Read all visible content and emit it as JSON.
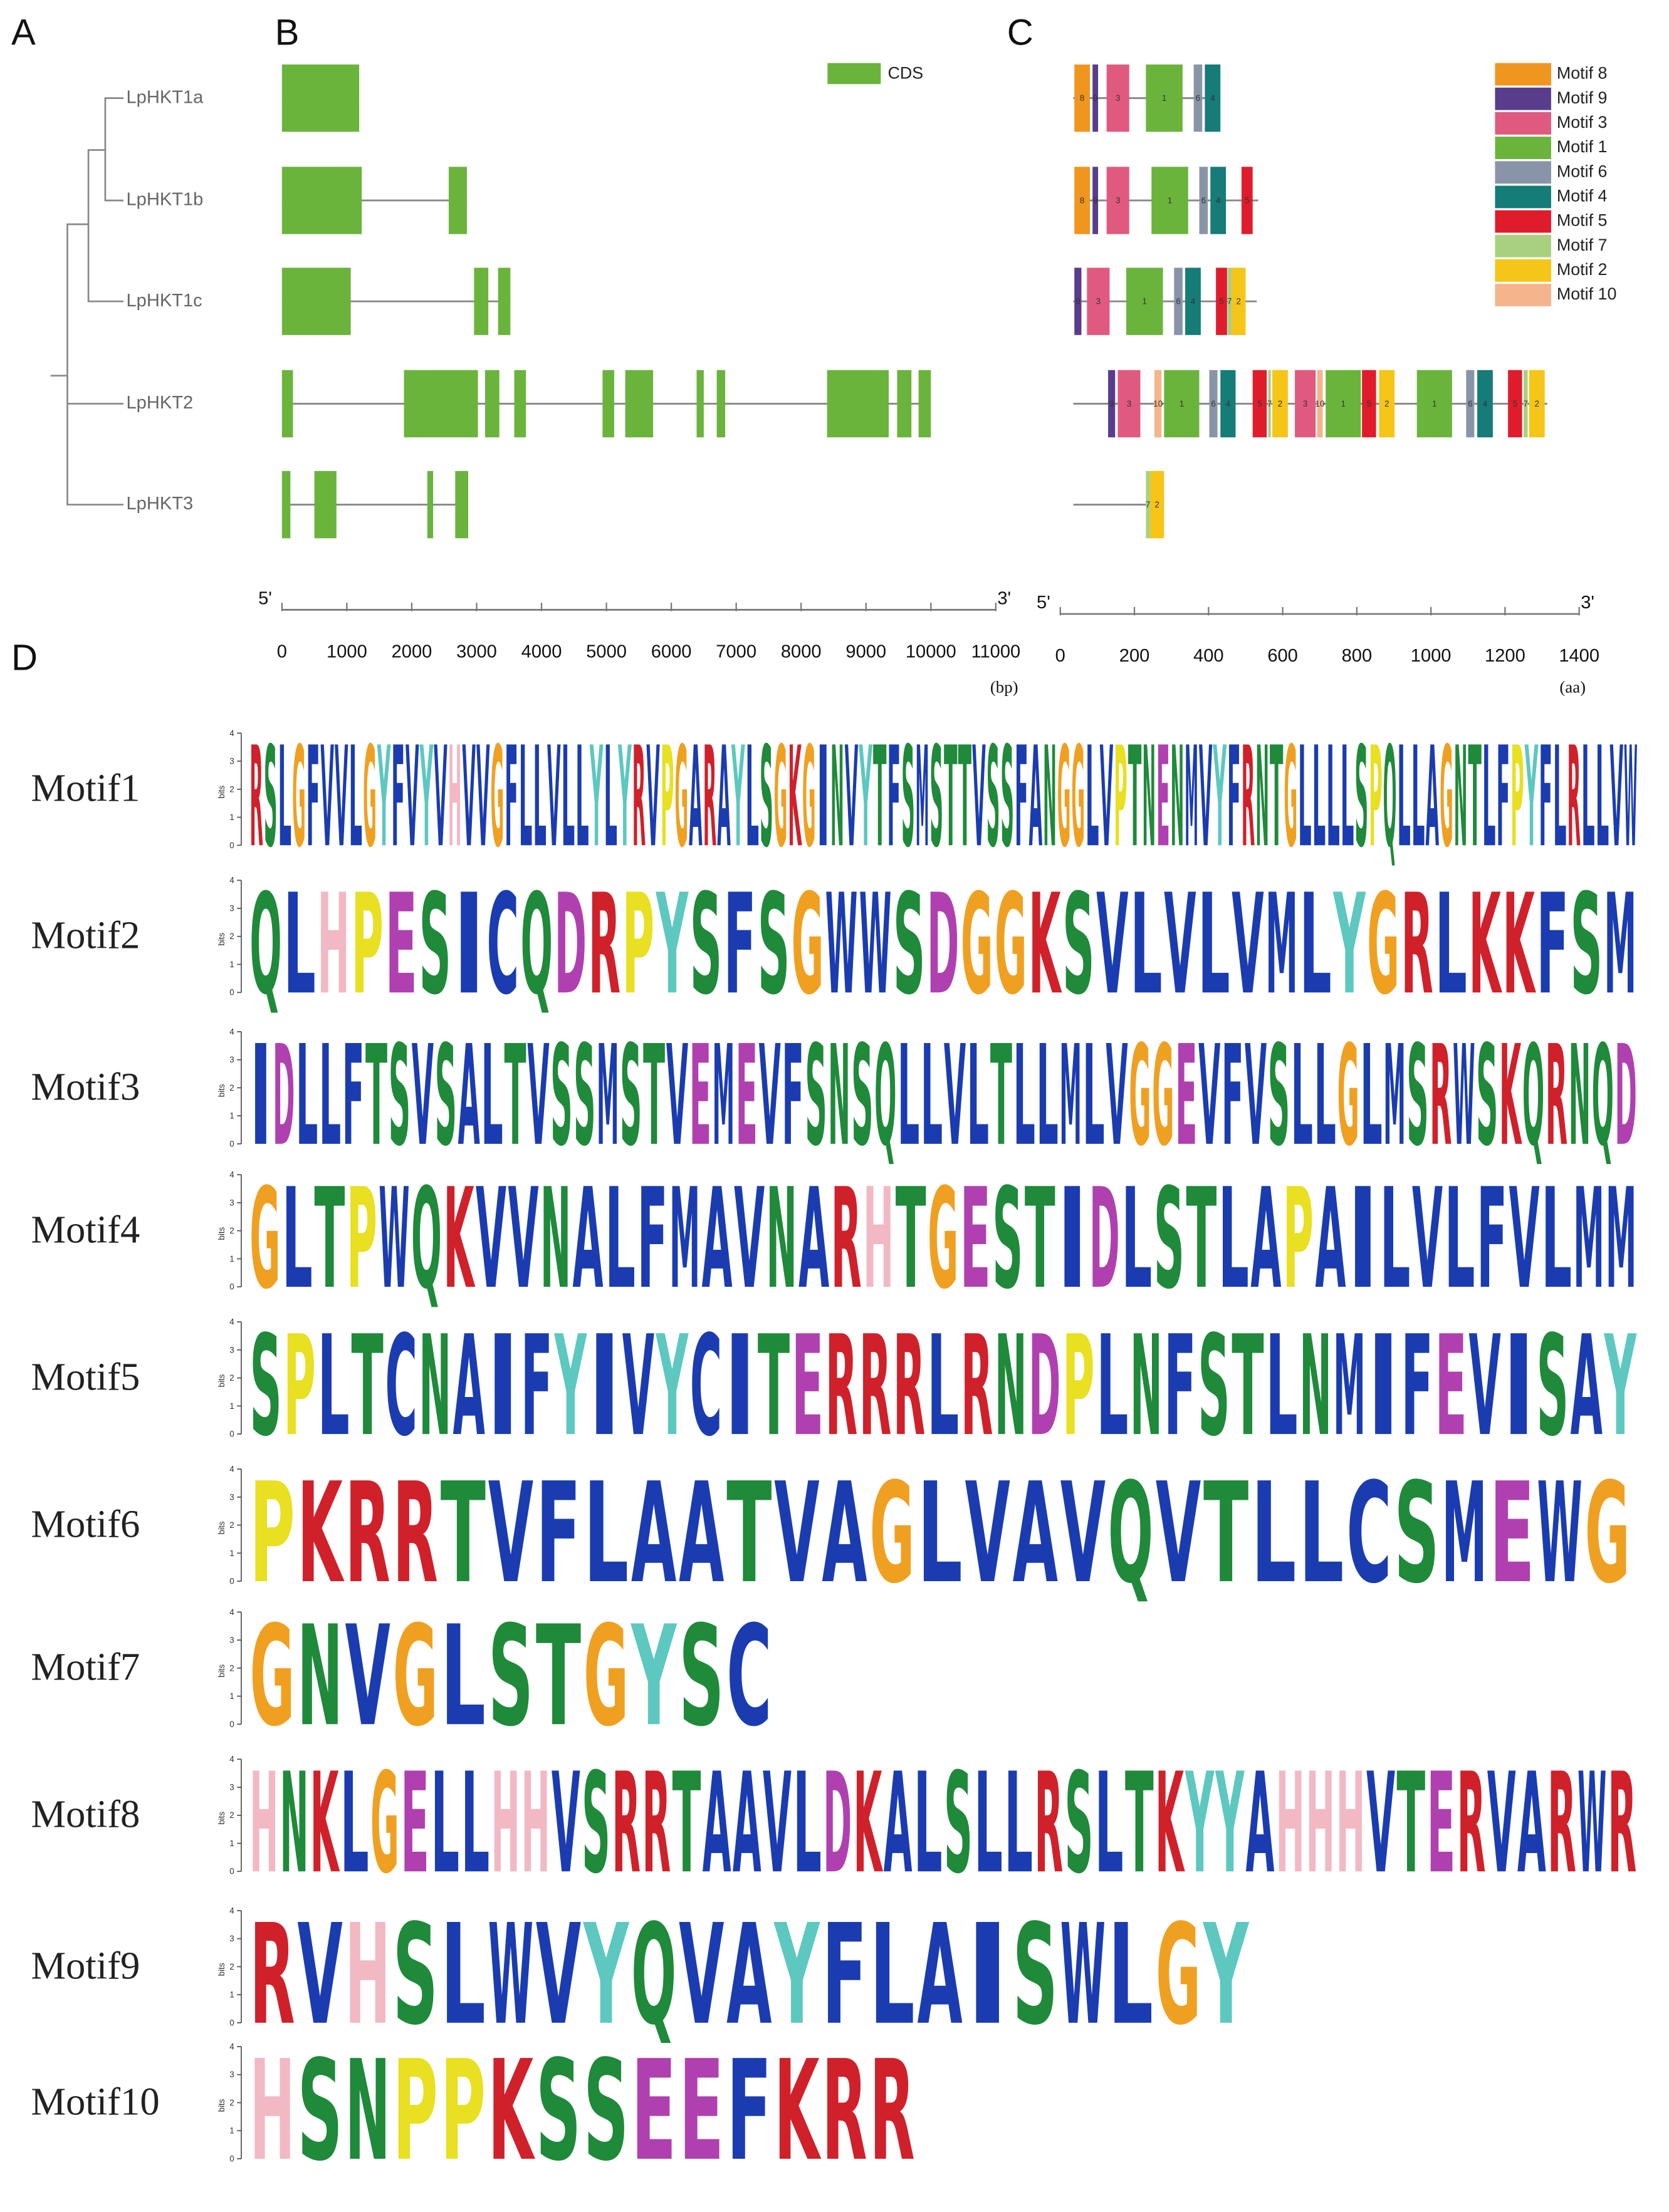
{
  "panels": {
    "a": "A",
    "b": "B",
    "c": "C",
    "d": "D"
  },
  "genes": [
    "LpHKT1a",
    "LpHKT1b",
    "LpHKT1c",
    "LpHKT2",
    "LpHKT3"
  ],
  "gene_structure": {
    "legend": "CDS",
    "color": "#6ab43c",
    "exons": [
      [
        [
          0,
          1190
        ]
      ],
      [
        [
          0,
          1230
        ],
        [
          2570,
          2850
        ]
      ],
      [
        [
          0,
          1060
        ],
        [
          2960,
          3180
        ],
        [
          3330,
          3520
        ]
      ],
      [
        [
          0,
          170
        ],
        [
          1880,
          3020
        ],
        [
          3130,
          3350
        ],
        [
          3580,
          3760
        ],
        [
          4940,
          5120
        ],
        [
          5290,
          5720
        ],
        [
          6390,
          6500
        ],
        [
          6700,
          6830
        ],
        [
          8400,
          9350
        ],
        [
          9480,
          9700
        ],
        [
          9810,
          10000
        ]
      ],
      [
        [
          0,
          130
        ],
        [
          500,
          840
        ],
        [
          2240,
          2330
        ],
        [
          2670,
          2870
        ]
      ]
    ],
    "xlim": [
      0,
      11000
    ],
    "xticks": [
      0,
      1000,
      2000,
      3000,
      4000,
      5000,
      6000,
      7000,
      8000,
      9000,
      10000,
      11000
    ],
    "five_prime": "5'",
    "three_prime": "3'",
    "unit": "(bp)"
  },
  "motif_structure": {
    "proteins": [
      {
        "span": [
          35,
          432
        ],
        "motifs": [
          {
            "motif": 8,
            "span": [
              38,
              80
            ]
          },
          {
            "motif": 9,
            "span": [
              87,
              102
            ]
          },
          {
            "motif": 3,
            "span": [
              125,
              186
            ]
          },
          {
            "motif": 1,
            "span": [
              231,
              330
            ]
          },
          {
            "motif": 6,
            "span": [
              360,
              383
            ]
          },
          {
            "motif": 4,
            "span": [
              390,
              432
            ]
          }
        ]
      },
      {
        "span": [
          38,
          534
        ],
        "motifs": [
          {
            "motif": 8,
            "span": [
              38,
              80
            ]
          },
          {
            "motif": 9,
            "span": [
              87,
              102
            ]
          },
          {
            "motif": 3,
            "span": [
              125,
              186
            ]
          },
          {
            "motif": 1,
            "span": [
              246,
              345
            ]
          },
          {
            "motif": 6,
            "span": [
              375,
              398
            ]
          },
          {
            "motif": 4,
            "span": [
              405,
              447
            ]
          },
          {
            "motif": 5,
            "span": [
              489,
              519
            ]
          }
        ]
      },
      {
        "span": [
          35,
          530
        ],
        "motifs": [
          {
            "motif": 9,
            "span": [
              38,
              57
            ]
          },
          {
            "motif": 3,
            "span": [
              72,
              133
            ]
          },
          {
            "motif": 1,
            "span": [
              178,
              277
            ]
          },
          {
            "motif": 6,
            "span": [
              307,
              330
            ]
          },
          {
            "motif": 4,
            "span": [
              337,
              379
            ]
          },
          {
            "motif": 5,
            "span": [
              420,
              450
            ]
          },
          {
            "motif": 7,
            "span": [
              451,
              462
            ]
          },
          {
            "motif": 2,
            "span": [
              462,
              500
            ]
          }
        ]
      },
      {
        "span": [
          35,
          1314
        ],
        "motifs": [
          {
            "motif": 9,
            "span": [
              129,
              148
            ]
          },
          {
            "motif": 3,
            "span": [
              155,
              216
            ]
          },
          {
            "motif": 10,
            "span": [
              254,
              273
            ]
          },
          {
            "motif": 1,
            "span": [
              280,
              375
            ]
          },
          {
            "motif": 6,
            "span": [
              402,
              424
            ]
          },
          {
            "motif": 4,
            "span": [
              432,
              473
            ]
          },
          {
            "motif": 5,
            "span": [
              519,
              557
            ]
          },
          {
            "motif": 7,
            "span": [
              561,
              568
            ]
          },
          {
            "motif": 2,
            "span": [
              572,
              614
            ]
          },
          {
            "motif": 3,
            "span": [
              633,
              689
            ]
          },
          {
            "motif": 10,
            "span": [
              693,
              708
            ]
          },
          {
            "motif": 1,
            "span": [
              716,
              811
            ]
          },
          {
            "motif": 5,
            "span": [
              814,
              852
            ]
          },
          {
            "motif": 2,
            "span": [
              860,
              902
            ]
          },
          {
            "motif": 1,
            "span": [
              962,
              1057
            ]
          },
          {
            "motif": 6,
            "span": [
              1095,
              1117
            ]
          },
          {
            "motif": 4,
            "span": [
              1125,
              1167
            ]
          },
          {
            "motif": 5,
            "span": [
              1208,
              1246
            ]
          },
          {
            "motif": 7,
            "span": [
              1250,
              1261
            ]
          },
          {
            "motif": 2,
            "span": [
              1265,
              1307
            ]
          }
        ]
      },
      {
        "span": [
          35,
          280
        ],
        "motifs": [
          {
            "motif": 7,
            "span": [
              231,
              242
            ]
          },
          {
            "motif": 2,
            "span": [
              242,
              280
            ]
          }
        ]
      }
    ],
    "legend": [
      {
        "name": "Motif 8",
        "color": "#f0961e"
      },
      {
        "name": "Motif 9",
        "color": "#5a3c8c"
      },
      {
        "name": "Motif 3",
        "color": "#e05a80"
      },
      {
        "name": "Motif 1",
        "color": "#6ab43c"
      },
      {
        "name": "Motif 6",
        "color": "#8a94a8"
      },
      {
        "name": "Motif 4",
        "color": "#157c78"
      },
      {
        "name": "Motif 5",
        "color": "#e01c2c"
      },
      {
        "name": "Motif 7",
        "color": "#a8d080"
      },
      {
        "name": "Motif 2",
        "color": "#f5c518"
      },
      {
        "name": "Motif 10",
        "color": "#f5b48c"
      }
    ],
    "xlim": [
      0,
      1400
    ],
    "xticks": [
      0,
      200,
      400,
      600,
      800,
      1000,
      1200,
      1400
    ],
    "five_prime": "5'",
    "three_prime": "3'",
    "unit": "(aa)"
  },
  "logos": {
    "ylabel": "bits",
    "yticks": [
      0,
      1,
      2,
      3,
      4
    ],
    "motifs": [
      {
        "name": "Motif1",
        "sequence": "RSLGFVVLGYFVYVHVVGFLLVLLYLYRVPGARAYLSGKGINVYTFSMSTTVSSFANGGLVPTNENMVYFRNTGLLLLSPQLLAGNTLFPYFLRLLVW"
      },
      {
        "name": "Motif2",
        "sequence": "QLHPESICQDRPYSFSGWWSDGGKSVLVLVMLYGRLKKFSM"
      },
      {
        "name": "Motif3",
        "sequence": "IDLLFTSVSALTVSSMSTVEMEVFSNSQLLVLTLLMLVGGEVFVSLLGLMSRWSKQRNQD"
      },
      {
        "name": "Motif4",
        "sequence": "GLTPWQKVVNALFMAVNARHTGESTIDLSTLAPAILVLFVLMM"
      },
      {
        "name": "Motif5",
        "sequence": "SPLTCNAIFYIVYCITERRRLRNDPLNFSTLNMIFEVISAY"
      },
      {
        "name": "Motif6",
        "sequence": "PKRRTVFLAATVAGLVAVQVTLLCSMEWG"
      },
      {
        "name": "Motif7",
        "sequence": "GNVGLSTGYSC"
      },
      {
        "name": "Motif8",
        "sequence": "HNKLGELLHHVSRRTAAVLDKALSLLRSLTKYYAHHHVTERVARWR"
      },
      {
        "name": "Motif9",
        "sequence": "RVHSLWVYQVAYFLAISWLGY"
      },
      {
        "name": "Motif10",
        "sequence": "HSNPPKSSEEFKRR"
      }
    ]
  }
}
